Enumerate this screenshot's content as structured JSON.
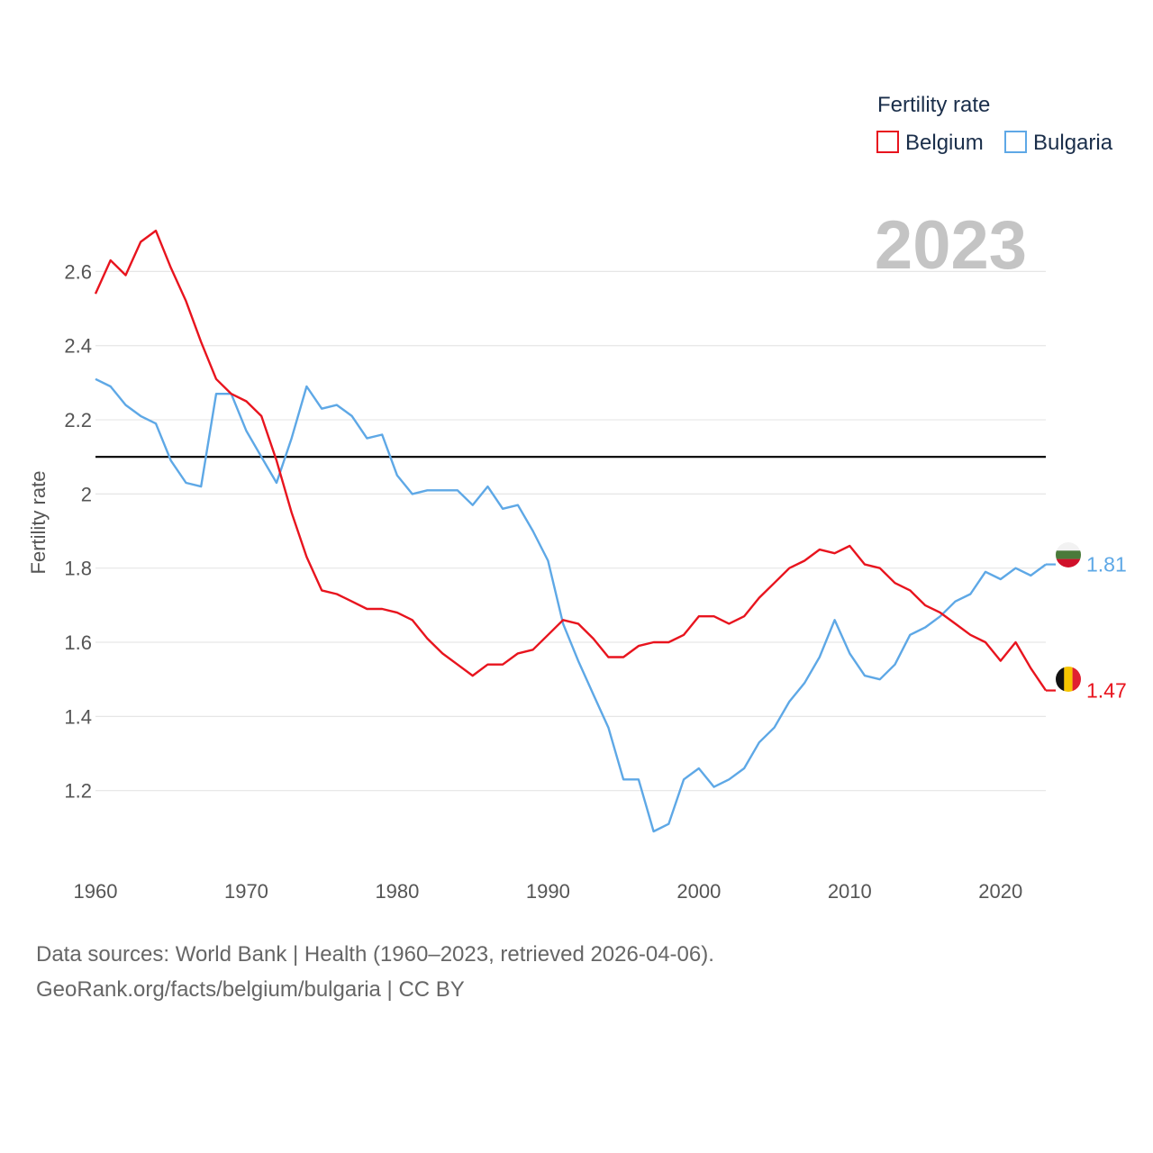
{
  "chart_data": {
    "type": "line",
    "title": "",
    "xlabel": "",
    "ylabel": "Fertility rate",
    "legend_title": "Fertility rate",
    "legend_position": "top-right",
    "year_stamp": "2023",
    "x": [
      1960,
      1961,
      1962,
      1963,
      1964,
      1965,
      1966,
      1967,
      1968,
      1969,
      1970,
      1971,
      1972,
      1973,
      1974,
      1975,
      1976,
      1977,
      1978,
      1979,
      1980,
      1981,
      1982,
      1983,
      1984,
      1985,
      1986,
      1987,
      1988,
      1989,
      1990,
      1991,
      1992,
      1993,
      1994,
      1995,
      1996,
      1997,
      1998,
      1999,
      2000,
      2001,
      2002,
      2003,
      2004,
      2005,
      2006,
      2007,
      2008,
      2009,
      2010,
      2011,
      2012,
      2013,
      2014,
      2015,
      2016,
      2017,
      2018,
      2019,
      2020,
      2021,
      2022,
      2023
    ],
    "xlim": [
      1960,
      2023
    ],
    "ylim": [
      1.0,
      2.72
    ],
    "x_ticks": [
      1960,
      1970,
      1980,
      1990,
      2000,
      2010,
      2020
    ],
    "y_ticks": [
      1.2,
      1.4,
      1.6,
      1.8,
      2.0,
      2.2,
      2.4,
      2.6
    ],
    "y_tick_labels": [
      "1.2",
      "1.4",
      "1.6",
      "1.8",
      "2",
      "2.2",
      "2.4",
      "2.6"
    ],
    "reference_line": 2.1,
    "series": [
      {
        "name": "Belgium",
        "color": "#e8141e",
        "end_label": "1.47",
        "flag": "belgium",
        "values": [
          2.54,
          2.63,
          2.59,
          2.68,
          2.71,
          2.61,
          2.52,
          2.41,
          2.31,
          2.27,
          2.25,
          2.21,
          2.09,
          1.95,
          1.83,
          1.74,
          1.73,
          1.71,
          1.69,
          1.69,
          1.68,
          1.66,
          1.61,
          1.57,
          1.54,
          1.51,
          1.54,
          1.54,
          1.57,
          1.58,
          1.62,
          1.66,
          1.65,
          1.61,
          1.56,
          1.56,
          1.59,
          1.6,
          1.6,
          1.62,
          1.67,
          1.67,
          1.65,
          1.67,
          1.72,
          1.76,
          1.8,
          1.82,
          1.85,
          1.84,
          1.86,
          1.81,
          1.8,
          1.76,
          1.74,
          1.7,
          1.68,
          1.65,
          1.62,
          1.6,
          1.55,
          1.6,
          1.53,
          1.47
        ]
      },
      {
        "name": "Bulgaria",
        "color": "#5ea8e6",
        "end_label": "1.81",
        "flag": "bulgaria",
        "values": [
          2.31,
          2.29,
          2.24,
          2.21,
          2.19,
          2.09,
          2.03,
          2.02,
          2.27,
          2.27,
          2.17,
          2.1,
          2.03,
          2.15,
          2.29,
          2.23,
          2.24,
          2.21,
          2.15,
          2.16,
          2.05,
          2.0,
          2.01,
          2.01,
          2.01,
          1.97,
          2.02,
          1.96,
          1.97,
          1.9,
          1.82,
          1.65,
          1.55,
          1.46,
          1.37,
          1.23,
          1.23,
          1.09,
          1.11,
          1.23,
          1.26,
          1.21,
          1.23,
          1.26,
          1.33,
          1.37,
          1.44,
          1.49,
          1.56,
          1.66,
          1.57,
          1.51,
          1.5,
          1.54,
          1.62,
          1.64,
          1.67,
          1.71,
          1.73,
          1.79,
          1.77,
          1.8,
          1.78,
          1.81
        ]
      }
    ]
  },
  "footer": {
    "line1": "Data sources: World Bank | Health (1960–2023, retrieved 2026-04-06).",
    "line2": "GeoRank.org/facts/belgium/bulgaria | CC BY"
  }
}
